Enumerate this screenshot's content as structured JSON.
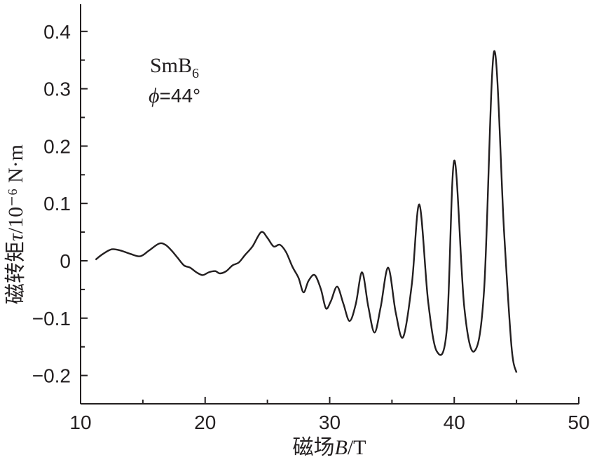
{
  "chart_data": {
    "type": "line",
    "xlabel": "磁场B/T",
    "xlabel_parts": {
      "prefix": "磁场",
      "var": "B",
      "unit": "/T"
    },
    "ylabel": "磁转矩τ/10⁻⁶ N·m",
    "ylabel_parts": {
      "prefix": "磁转矩",
      "var": "τ",
      "unit": "/10⁻⁶ N·m"
    },
    "xlim": [
      10,
      50
    ],
    "ylim": [
      -0.25,
      0.45
    ],
    "x_ticks": [
      10,
      20,
      30,
      40,
      50
    ],
    "x_tick_labels": [
      "10",
      "20",
      "30",
      "40",
      "50"
    ],
    "y_ticks": [
      -0.2,
      -0.1,
      0,
      0.1,
      0.2,
      0.3,
      0.4
    ],
    "y_tick_labels": [
      "−0.2",
      "−0.1",
      "0",
      "0.1",
      "0.2",
      "0.3",
      "0.4"
    ],
    "grid": false,
    "annotations": {
      "material": {
        "base": "SmB",
        "sub": "6"
      },
      "angle": {
        "symbol": "ϕ",
        "text": "=44°"
      }
    },
    "series": [
      {
        "color": "#231f20",
        "x": [
          11.2,
          11.8,
          12.5,
          13.2,
          14.0,
          14.8,
          15.5,
          16.3,
          16.8,
          17.3,
          17.8,
          18.3,
          18.8,
          19.3,
          19.8,
          20.3,
          20.8,
          21.2,
          21.7,
          22.2,
          22.7,
          23.2,
          23.8,
          24.5,
          25.0,
          25.5,
          26.0,
          26.5,
          27.0,
          27.5,
          27.9,
          28.3,
          28.8,
          29.3,
          29.7,
          30.1,
          30.6,
          31.1,
          31.6,
          32.1,
          32.6,
          33.1,
          33.6,
          34.1,
          34.7,
          35.3,
          35.9,
          36.6,
          37.2,
          37.9,
          38.6,
          39.4,
          40.0,
          40.8,
          41.6,
          42.4,
          43.2,
          44.0,
          44.6,
          45.0
        ],
        "y": [
          0.002,
          0.012,
          0.02,
          0.018,
          0.012,
          0.008,
          0.018,
          0.03,
          0.028,
          0.018,
          0.005,
          -0.008,
          -0.012,
          -0.02,
          -0.025,
          -0.02,
          -0.018,
          -0.022,
          -0.018,
          -0.008,
          -0.003,
          0.01,
          0.025,
          0.05,
          0.04,
          0.025,
          0.028,
          0.015,
          -0.01,
          -0.03,
          -0.055,
          -0.035,
          -0.025,
          -0.05,
          -0.083,
          -0.07,
          -0.045,
          -0.075,
          -0.105,
          -0.075,
          -0.02,
          -0.08,
          -0.125,
          -0.08,
          -0.012,
          -0.09,
          -0.133,
          -0.04,
          0.098,
          -0.07,
          -0.158,
          -0.12,
          0.175,
          -0.08,
          -0.158,
          -0.05,
          0.365,
          0.05,
          -0.15,
          -0.195
        ]
      }
    ]
  }
}
